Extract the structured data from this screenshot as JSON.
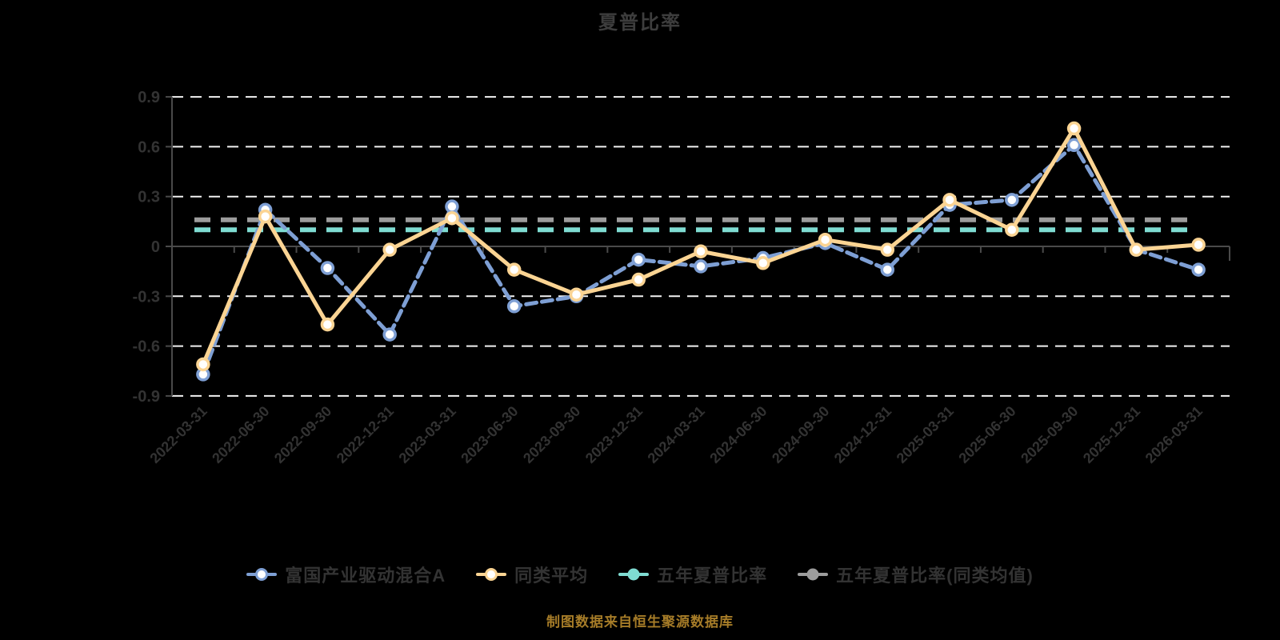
{
  "title": "夏普比率",
  "source_note": "制图数据来自恒生聚源数据库",
  "colors": {
    "background": "#000000",
    "title": "#3d3d3d",
    "axis_label": "#333333",
    "grid_line": "#f2f2f2",
    "axis_line": "#4a4a4a",
    "footer": "#a67c28",
    "marker_fill": "#ffffff"
  },
  "chart_data": {
    "type": "line",
    "title": "夏普比率",
    "categories": [
      "2022-03-31",
      "2022-06-30",
      "2022-09-30",
      "2022-12-31",
      "2023-03-31",
      "2023-06-30",
      "2023-09-30",
      "2023-12-31",
      "2024-03-31",
      "2024-06-30",
      "2024-09-30",
      "2024-12-31",
      "2025-03-31",
      "2025-06-30",
      "2025-09-30",
      "2025-12-31",
      "2026-03-31"
    ],
    "series": [
      {
        "name": "富国产业驱动混合A",
        "color": "#7e9fd4",
        "line_style": "dashed",
        "marker": "hollow-circle",
        "values": [
          -0.77,
          0.22,
          -0.13,
          -0.53,
          0.24,
          -0.36,
          -0.3,
          -0.08,
          -0.12,
          -0.07,
          0.02,
          -0.14,
          0.25,
          0.28,
          0.61,
          -0.02,
          -0.14
        ]
      },
      {
        "name": "同类平均",
        "color": "#fbd493",
        "line_style": "solid",
        "marker": "hollow-circle",
        "values": [
          -0.71,
          0.18,
          -0.47,
          -0.02,
          0.17,
          -0.14,
          -0.29,
          -0.2,
          -0.03,
          -0.1,
          0.04,
          -0.02,
          0.28,
          0.1,
          0.71,
          -0.02,
          0.01
        ]
      },
      {
        "name": "五年夏普比率",
        "color": "#7fdcd2",
        "line_style": "dashed",
        "marker": "filled-circle",
        "constant_value": 0.1
      },
      {
        "name": "五年夏普比率(同类均值)",
        "color": "#9c9c9c",
        "line_style": "dashed",
        "marker": "filled-circle",
        "constant_value": 0.16
      }
    ],
    "ylim": [
      -0.9,
      0.9
    ],
    "ytick_step": 0.3,
    "grid": "horizontal-dashed-white",
    "legend_position": "bottom",
    "x_label_rotation": 45
  }
}
